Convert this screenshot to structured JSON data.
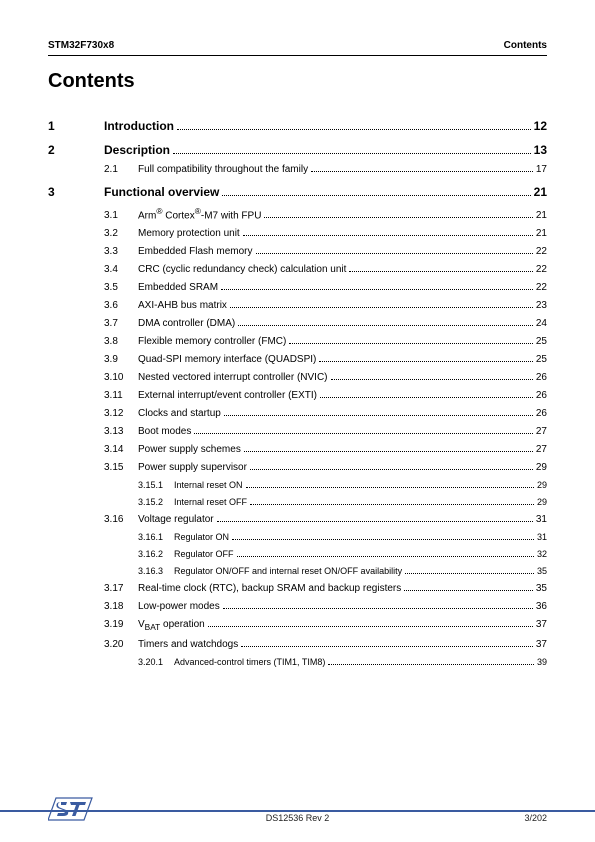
{
  "header": {
    "doc_id": "STM32F730x8",
    "section": "Contents"
  },
  "title": "Contents",
  "toc": {
    "chapters": [
      {
        "num": "1",
        "title": "Introduction",
        "page": "12",
        "subs": []
      },
      {
        "num": "2",
        "title": "Description",
        "page": "13",
        "subs": [
          {
            "num": "2.1",
            "title": "Full compatibility throughout the family",
            "page": "17"
          }
        ]
      },
      {
        "num": "3",
        "title": "Functional overview",
        "page": "21",
        "subs": [
          {
            "num": "3.1",
            "title_html": "Arm<sup>®</sup> Cortex<sup>®</sup>-M7 with FPU",
            "page": "21"
          },
          {
            "num": "3.2",
            "title": "Memory protection unit",
            "page": "21"
          },
          {
            "num": "3.3",
            "title": "Embedded Flash memory",
            "page": "22"
          },
          {
            "num": "3.4",
            "title": "CRC (cyclic redundancy check) calculation unit",
            "page": "22"
          },
          {
            "num": "3.5",
            "title": "Embedded SRAM",
            "page": "22"
          },
          {
            "num": "3.6",
            "title": "AXI-AHB bus matrix",
            "page": "23"
          },
          {
            "num": "3.7",
            "title": "DMA controller (DMA)",
            "page": "24"
          },
          {
            "num": "3.8",
            "title": "Flexible memory controller (FMC)",
            "page": "25"
          },
          {
            "num": "3.9",
            "title": "Quad-SPI memory interface (QUADSPI)",
            "page": "25"
          },
          {
            "num": "3.10",
            "title": "Nested vectored interrupt controller (NVIC)",
            "page": "26"
          },
          {
            "num": "3.11",
            "title": "External interrupt/event controller (EXTI)",
            "page": "26"
          },
          {
            "num": "3.12",
            "title": "Clocks and startup",
            "page": "26"
          },
          {
            "num": "3.13",
            "title": "Boot modes",
            "page": "27"
          },
          {
            "num": "3.14",
            "title": "Power supply schemes",
            "page": "27"
          },
          {
            "num": "3.15",
            "title": "Power supply supervisor",
            "page": "29",
            "subsubs": [
              {
                "num": "3.15.1",
                "title": "Internal reset ON",
                "page": "29"
              },
              {
                "num": "3.15.2",
                "title": "Internal reset OFF",
                "page": "29"
              }
            ]
          },
          {
            "num": "3.16",
            "title": "Voltage regulator",
            "page": "31",
            "subsubs": [
              {
                "num": "3.16.1",
                "title": "Regulator ON",
                "page": "31"
              },
              {
                "num": "3.16.2",
                "title": "Regulator OFF",
                "page": "32"
              },
              {
                "num": "3.16.3",
                "title": "Regulator ON/OFF and internal reset ON/OFF availability",
                "page": "35"
              }
            ]
          },
          {
            "num": "3.17",
            "title": "Real-time clock (RTC), backup SRAM and backup registers",
            "page": "35"
          },
          {
            "num": "3.18",
            "title": "Low-power modes",
            "page": "36"
          },
          {
            "num": "3.19",
            "title_html": "V<sub>BAT</sub> operation",
            "page": "37"
          },
          {
            "num": "3.20",
            "title": "Timers and watchdogs",
            "page": "37",
            "subsubs": [
              {
                "num": "3.20.1",
                "title": "Advanced-control timers (TIM1, TIM8)",
                "page": "39"
              }
            ]
          }
        ]
      }
    ]
  },
  "footer": {
    "docref": "DS12536 Rev 2",
    "page": "3/202"
  },
  "colors": {
    "rule": "#3a5ba0",
    "logo_fill": "#3a5ba0"
  }
}
